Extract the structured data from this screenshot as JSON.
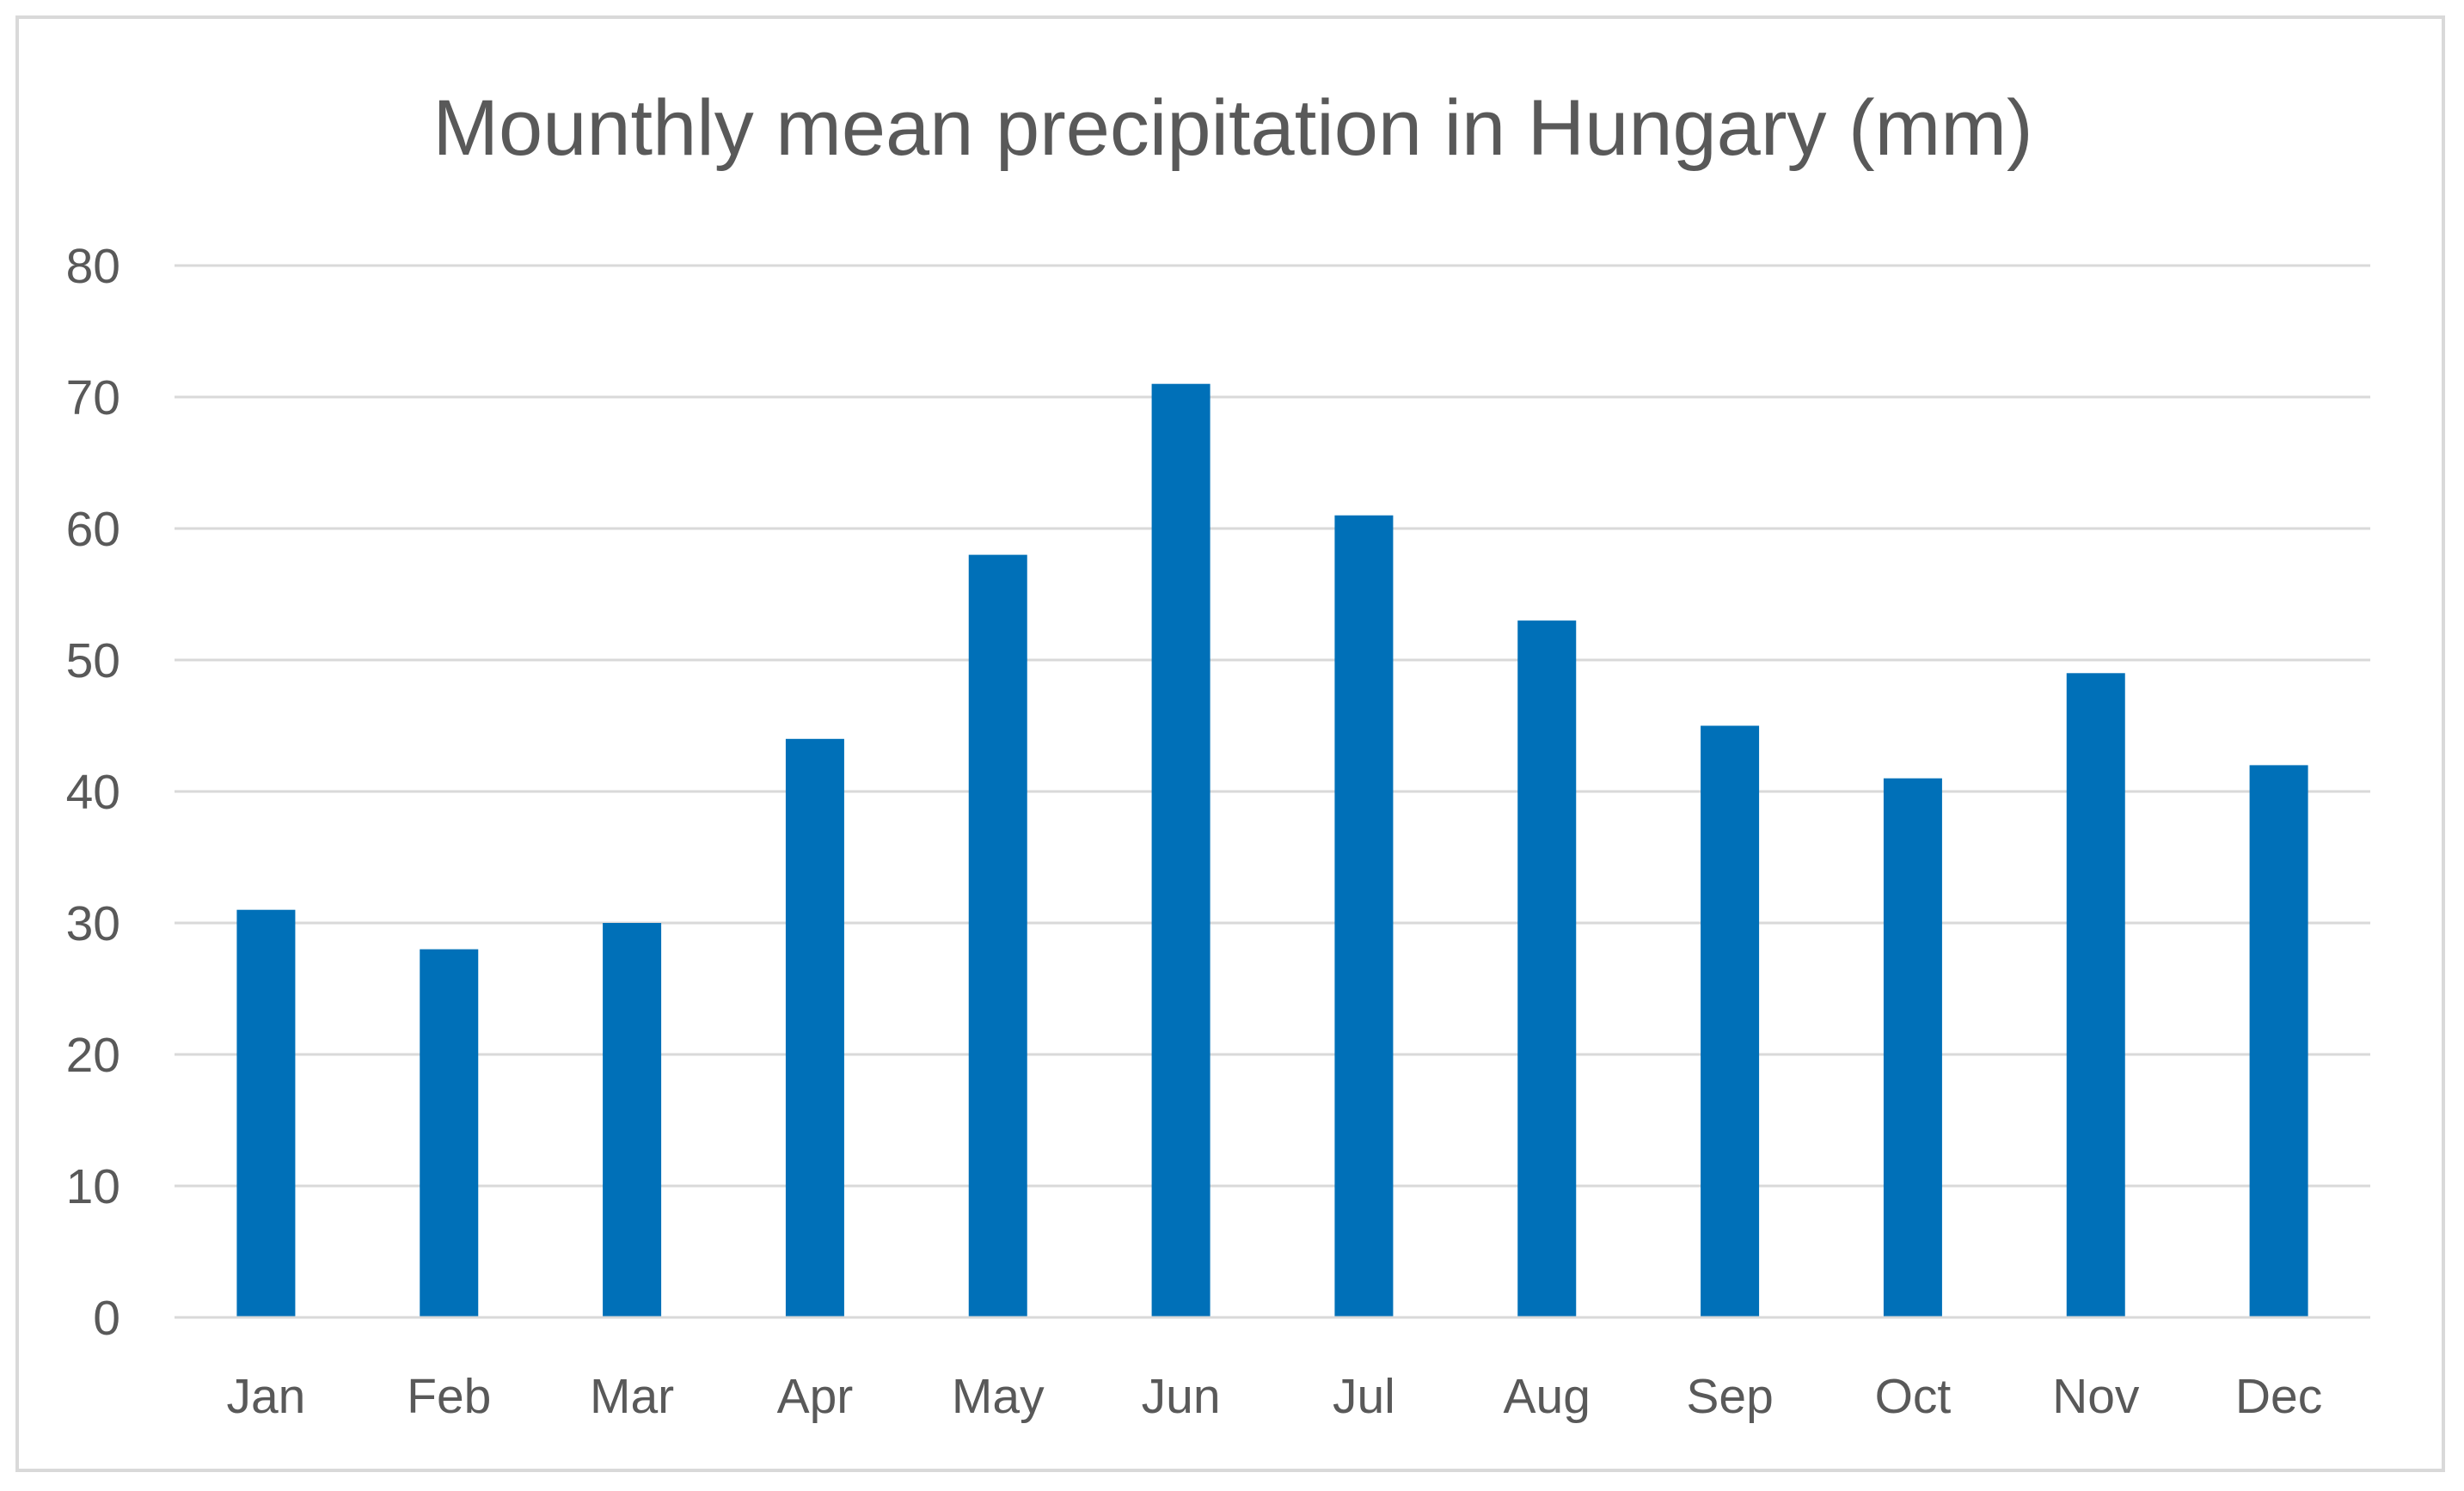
{
  "chart_data": {
    "type": "bar",
    "title": "Mounthly mean precipitation in Hungary (mm)",
    "xlabel": "",
    "ylabel": "",
    "categories": [
      "Jan",
      "Feb",
      "Mar",
      "Apr",
      "May",
      "Jun",
      "Jul",
      "Aug",
      "Sep",
      "Oct",
      "Nov",
      "Dec"
    ],
    "values": [
      31,
      28,
      30,
      44,
      58,
      71,
      61,
      53,
      45,
      41,
      49,
      42
    ],
    "ylim": [
      0,
      80
    ],
    "yticks": [
      0,
      10,
      20,
      30,
      40,
      50,
      60,
      70,
      80
    ],
    "ytick_labels": [
      "0",
      "10",
      "20",
      "30",
      "40",
      "50",
      "60",
      "70",
      "80"
    ],
    "grid": true,
    "legend": "none",
    "bar_color": "#0070B8",
    "grid_color": "#D9D9D9",
    "text_color": "#595959"
  }
}
